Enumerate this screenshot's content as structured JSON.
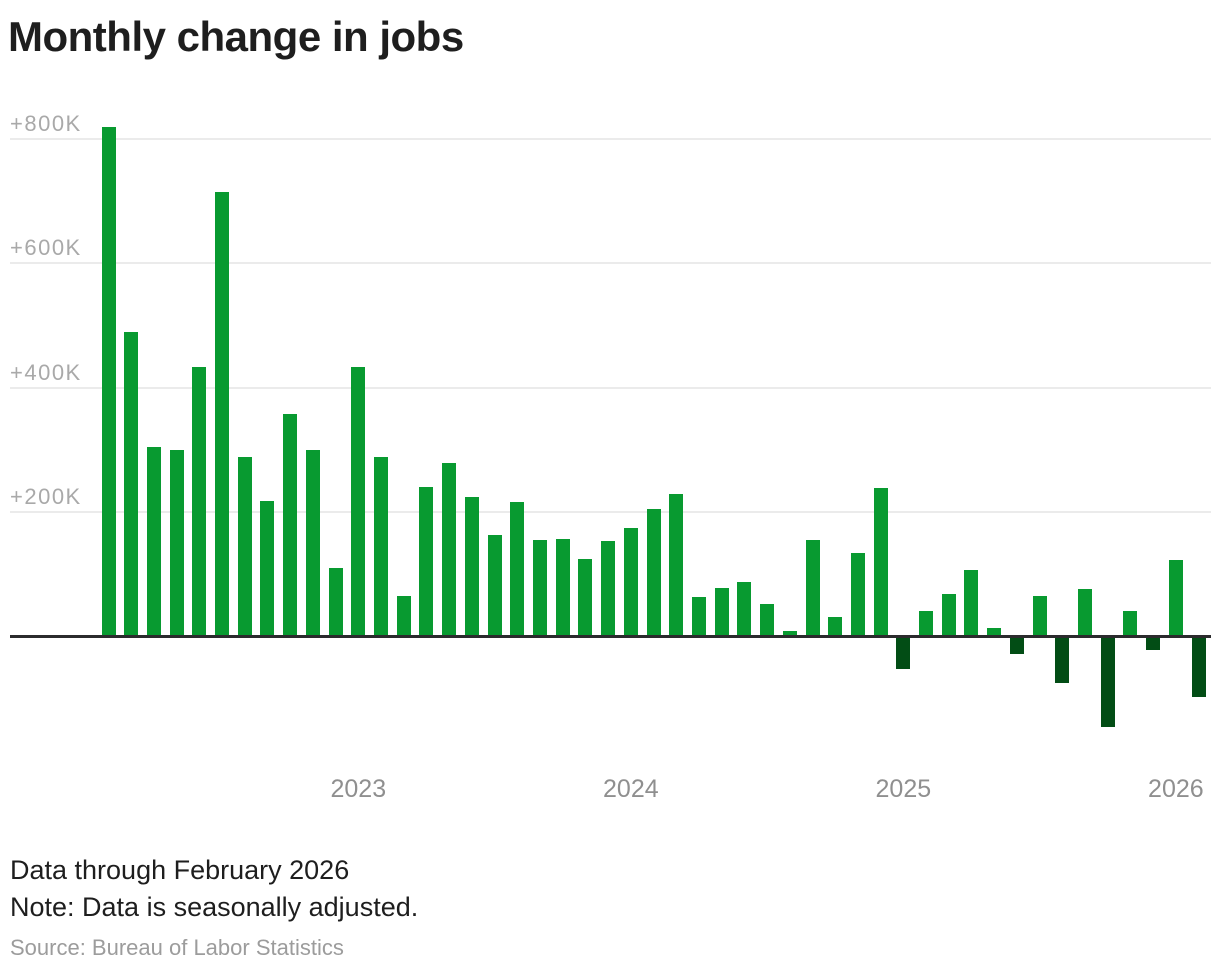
{
  "chart_data": {
    "type": "bar",
    "title": "Monthly change in jobs",
    "value_unit": "jobs, thousands",
    "ylim": [
      -200,
      900
    ],
    "grid": "horizontal",
    "legend": "none",
    "y_ticks": [
      {
        "label": "+800K",
        "value": 800
      },
      {
        "label": "+600K",
        "value": 600
      },
      {
        "label": "+400K",
        "value": 400
      },
      {
        "label": "+200K",
        "value": 200
      }
    ],
    "x_ticks": [
      {
        "label": "2023",
        "month_index": 11
      },
      {
        "label": "2024",
        "month_index": 23
      },
      {
        "label": "2025",
        "month_index": 35
      },
      {
        "label": "2026",
        "month_index": 47
      }
    ],
    "categories": [
      "Feb 2022",
      "Mar 2022",
      "Apr 2022",
      "May 2022",
      "Jun 2022",
      "Jul 2022",
      "Aug 2022",
      "Sep 2022",
      "Oct 2022",
      "Nov 2022",
      "Dec 2022",
      "Jan 2023",
      "Feb 2023",
      "Mar 2023",
      "Apr 2023",
      "May 2023",
      "Jun 2023",
      "Jul 2023",
      "Aug 2023",
      "Sep 2023",
      "Oct 2023",
      "Nov 2023",
      "Dec 2023",
      "Jan 2024",
      "Feb 2024",
      "Mar 2024",
      "Apr 2024",
      "May 2024",
      "Jun 2024",
      "Jul 2024",
      "Aug 2024",
      "Sep 2024",
      "Oct 2024",
      "Nov 2024",
      "Dec 2024",
      "Jan 2025",
      "Feb 2025",
      "Mar 2025",
      "Apr 2025",
      "May 2025",
      "Jun 2025",
      "Jul 2025",
      "Aug 2025",
      "Sep 2025",
      "Oct 2025",
      "Nov 2025",
      "Dec 2025",
      "Jan 2026",
      "Feb 2026"
    ],
    "values": [
      820,
      490,
      305,
      300,
      433,
      715,
      288,
      218,
      357,
      300,
      110,
      433,
      288,
      65,
      240,
      278,
      223,
      162,
      216,
      154,
      156,
      124,
      153,
      174,
      205,
      228,
      62,
      78,
      87,
      52,
      8,
      155,
      31,
      133,
      238,
      -50,
      41,
      67,
      106,
      13,
      -25,
      65,
      -72,
      75,
      -143,
      40,
      -20,
      123,
      -95
    ],
    "colors": {
      "positive_bar": "#089a30",
      "negative_bar": "#024d15",
      "gridline": "#ebebeb",
      "zero_axis": "#2b2b2d",
      "y_tick_text": "#a9a9a9",
      "x_tick_text": "#8f8f8f"
    }
  },
  "footer": {
    "line1": "Data through February 2026",
    "line2": "Note: Data is seasonally adjusted.",
    "source": "Source: Bureau of Labor Statistics"
  }
}
